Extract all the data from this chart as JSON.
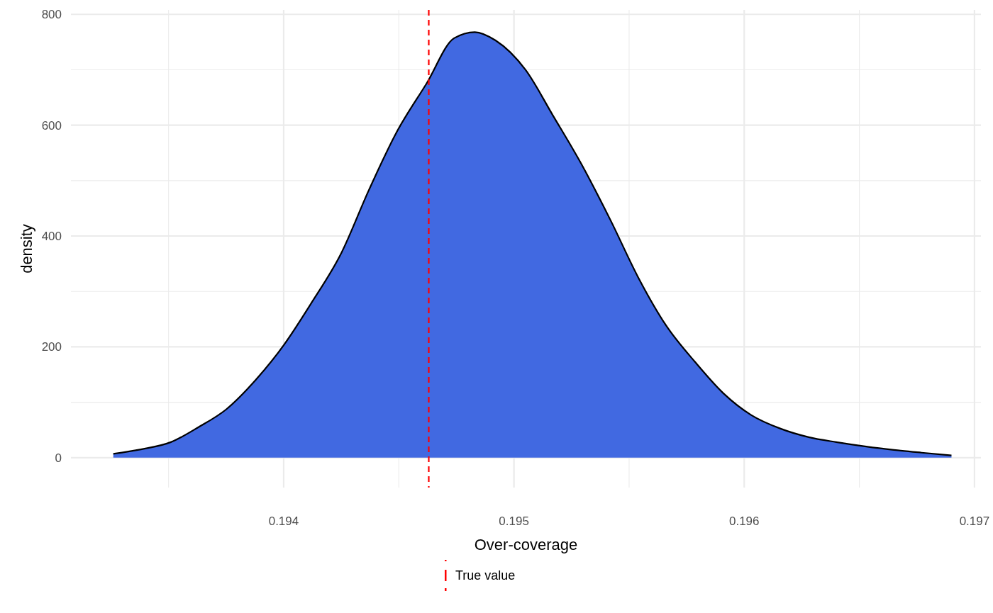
{
  "chart_data": {
    "type": "area",
    "xlabel": "Over-coverage",
    "ylabel": "density",
    "xlim": [
      0.193076,
      0.197028
    ],
    "ylim": [
      -54,
      808
    ],
    "xticks": [
      {
        "value": 0.1935,
        "label": null
      },
      0.194,
      {
        "value": 0.1945,
        "label": null
      },
      0.195,
      {
        "value": 0.1955,
        "label": null
      },
      0.196,
      {
        "value": 0.1965,
        "label": null
      },
      0.197
    ],
    "yticks": [
      0,
      {
        "value": 100,
        "label": null
      },
      200,
      {
        "value": 300,
        "label": null
      },
      400,
      {
        "value": 500,
        "label": null
      },
      600,
      {
        "value": 700,
        "label": null
      },
      800
    ],
    "grid": true,
    "legend": "bottom",
    "x": [
      0.19326,
      0.19338,
      0.19351,
      0.19363,
      0.19375,
      0.19388,
      0.194,
      0.19412,
      0.19425,
      0.19437,
      0.19449,
      0.19462,
      0.19474,
      0.19483,
      0.19492,
      0.19505,
      0.19517,
      0.19529,
      0.19542,
      0.19554,
      0.19566,
      0.19579,
      0.19591,
      0.19603,
      0.19616,
      0.19628,
      0.1964,
      0.19653,
      0.19665,
      0.19677,
      0.1969
    ],
    "series": [
      {
        "color": "#4169e1",
        "values": [
          7,
          15,
          28,
          55,
          87,
          141,
          203,
          279,
          369,
          483,
          587,
          675,
          757,
          768,
          753,
          700,
          617,
          532,
          428,
          325,
          239,
          171,
          116,
          77,
          52,
          37,
          28,
          20,
          14,
          9,
          4
        ]
      }
    ],
    "ref_lines": [
      {
        "axis": "x",
        "value": 0.19463,
        "label": "True value",
        "color": "#ff0000",
        "line_style": "dashed"
      }
    ]
  }
}
